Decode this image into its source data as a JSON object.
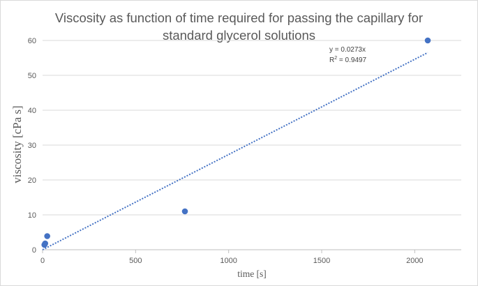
{
  "chart_data": {
    "type": "scatter",
    "title": "Viscosity as function of time required for passing the capillary for standard glycerol solutions",
    "xlabel": "time [s]",
    "ylabel": "viscosity  [cPa s]",
    "xlim": [
      0,
      2250
    ],
    "ylim": [
      0,
      65
    ],
    "x_ticks": [
      0,
      500,
      1000,
      1500,
      2000
    ],
    "y_ticks": [
      0,
      10,
      20,
      30,
      40,
      50,
      60
    ],
    "grid": "horizontal",
    "legend": "none",
    "series": [
      {
        "color": "#4472c4",
        "points": [
          {
            "x": 10,
            "y": 1.4
          },
          {
            "x": 14,
            "y": 1.8
          },
          {
            "x": 25,
            "y": 3.9
          },
          {
            "x": 765,
            "y": 11
          },
          {
            "x": 2070,
            "y": 60
          }
        ]
      }
    ],
    "trendline": {
      "type": "linear",
      "slope": 0.0273,
      "x_range": [
        0,
        2070
      ],
      "color": "#4472c4",
      "style": "dotted",
      "equation": "y = 0.0273x",
      "r2_prefix": "R",
      "r2_sup": "2",
      "r2_value": " = 0.9497"
    }
  }
}
